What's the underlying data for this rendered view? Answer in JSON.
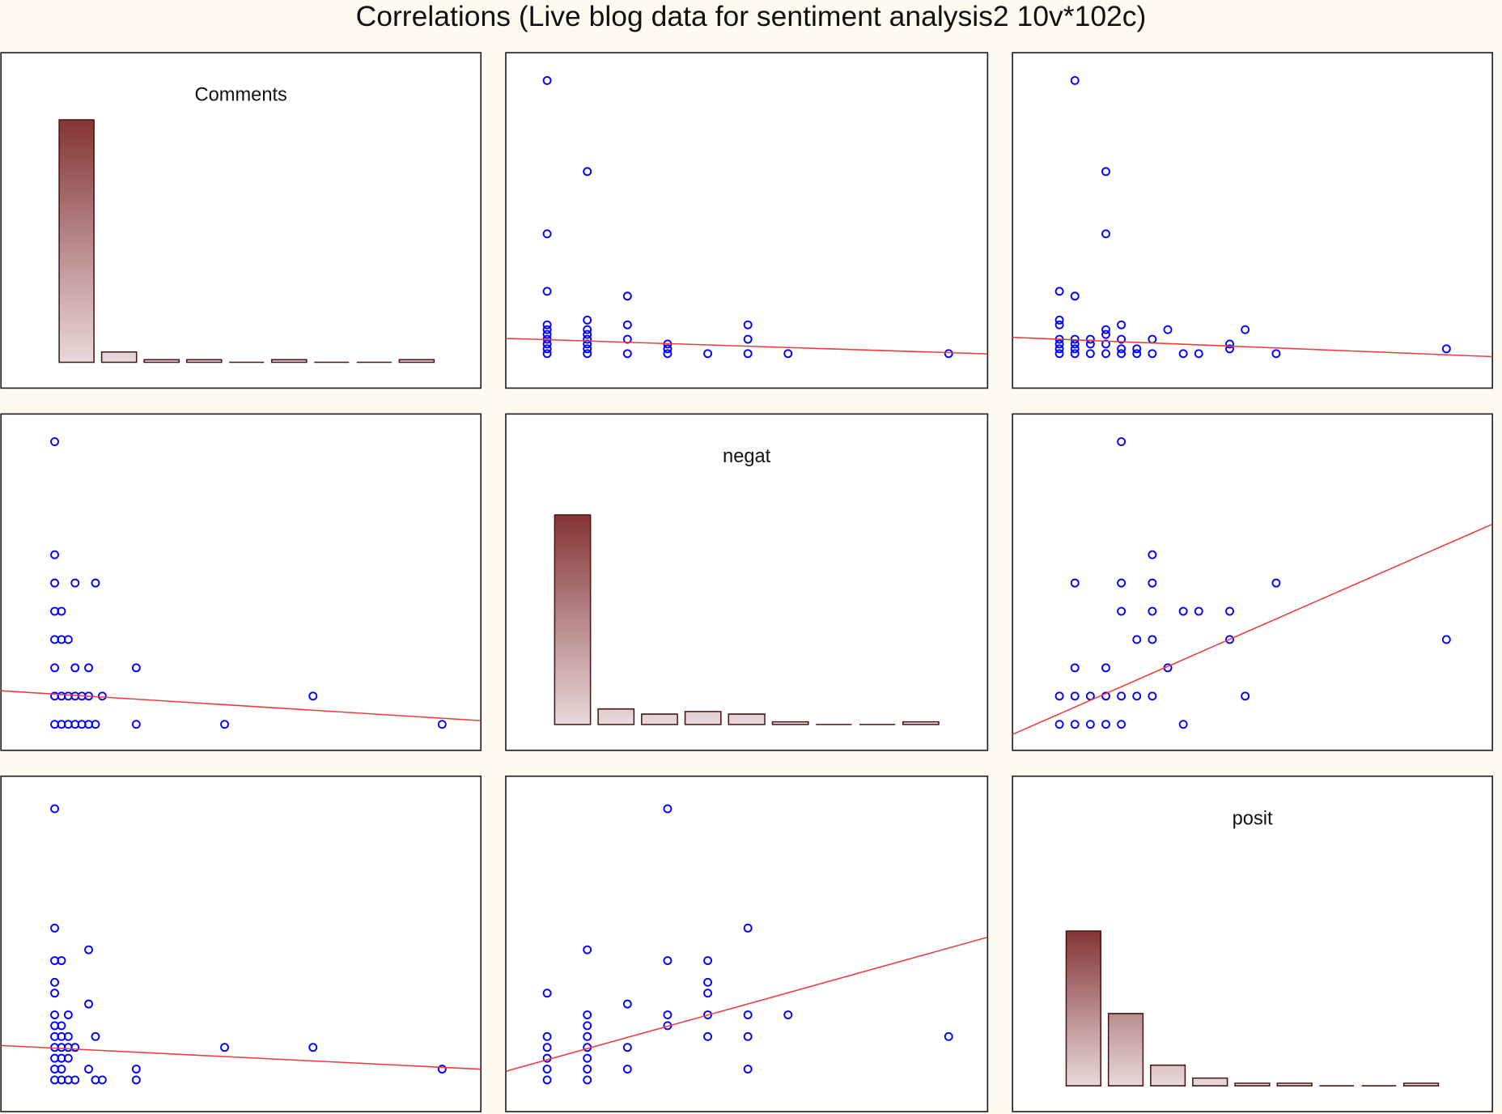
{
  "title": "Correlations (Live blog data for sentiment analysis2 10v*102c)",
  "chart_data": [
    {
      "type": "histogram",
      "title": "Comments",
      "bins": [
        0,
        6.33,
        12.67,
        19,
        25.33,
        31.67,
        38,
        44.33,
        50.67,
        57
      ],
      "values": [
        94,
        4,
        1,
        1,
        0,
        1,
        0,
        0,
        1
      ],
      "colors": [
        "#853535",
        "#e8d9da"
      ],
      "xlim": [
        -8.1,
        63.4
      ],
      "ylim": [
        -10,
        120
      ]
    },
    {
      "type": "scatter",
      "x": [
        0,
        1,
        0,
        0,
        2,
        0,
        0,
        0,
        0,
        0,
        0,
        0,
        1,
        1,
        1,
        1,
        1,
        1,
        1,
        2,
        2,
        2,
        3,
        3,
        3,
        4,
        5,
        5,
        5,
        6,
        10
      ],
      "values": [
        57,
        38,
        25,
        13,
        12,
        6,
        5,
        4,
        3,
        2,
        1,
        0,
        7,
        5,
        4,
        3,
        2,
        1,
        0,
        6,
        3,
        0,
        2,
        1,
        0,
        0,
        6,
        3,
        0,
        0,
        0
      ],
      "color": "#0000ff",
      "fit": {
        "slope": -0.27,
        "intercept": 2.9,
        "color": "#ee3b3b"
      },
      "xlim": [
        -1.03,
        10.97
      ],
      "ylim": [
        -7.2,
        62.8
      ]
    },
    {
      "type": "scatter",
      "x": [
        1,
        3,
        3,
        0,
        1,
        0,
        0,
        0,
        0,
        0,
        0,
        1,
        1,
        1,
        1,
        2,
        2,
        2,
        3,
        3,
        3,
        3,
        4,
        4,
        4,
        4,
        5,
        5,
        6,
        6,
        7,
        8,
        9,
        11,
        11,
        12,
        14,
        25
      ],
      "values": [
        57,
        38,
        25,
        13,
        12,
        7,
        6,
        3,
        2,
        1,
        0,
        3,
        2,
        1,
        0,
        3,
        2,
        0,
        5,
        4,
        2,
        0,
        6,
        3,
        1,
        0,
        1,
        0,
        3,
        0,
        5,
        0,
        0,
        2,
        1,
        5,
        0,
        1
      ],
      "color": "#0000ff",
      "fit": {
        "slope": -0.13,
        "intercept": 3.0,
        "color": "#ee3b3b"
      },
      "xlim": [
        -3.03,
        27.97
      ],
      "ylim": [
        -7.2,
        62.8
      ]
    },
    {
      "type": "scatter",
      "x": [
        0,
        0,
        0,
        3,
        6,
        0,
        1,
        0,
        1,
        2,
        0,
        3,
        5,
        12,
        0,
        1,
        2,
        3,
        4,
        5,
        7,
        38,
        0,
        1,
        2,
        3,
        4,
        5,
        6,
        12,
        25,
        57
      ],
      "values": [
        10,
        6,
        5,
        5,
        5,
        4,
        4,
        3,
        3,
        3,
        2,
        2,
        2,
        2,
        1,
        1,
        1,
        1,
        1,
        1,
        1,
        1,
        0,
        0,
        0,
        0,
        0,
        0,
        0,
        0,
        0,
        0
      ],
      "color": "#0000ff",
      "fit": {
        "slope": -0.015,
        "intercept": 1.07,
        "color": "#ee3b3b"
      },
      "xlim": [
        -7.9,
        62.7
      ],
      "ylim": [
        -0.92,
        10.98
      ]
    },
    {
      "type": "histogram",
      "title": "negat",
      "bins": [
        0,
        1.11,
        2.22,
        3.33,
        4.44,
        5.56,
        6.67,
        7.78,
        8.89,
        10
      ],
      "values": [
        81,
        6,
        4,
        5,
        4,
        1,
        0,
        0,
        1
      ],
      "colors": [
        "#853535",
        "#e8d9da"
      ],
      "xlim": [
        -1.15,
        11.15
      ],
      "ylim": [
        -10,
        120
      ]
    },
    {
      "type": "scatter",
      "x": [
        4,
        6,
        1,
        4,
        6,
        14,
        4,
        6,
        8,
        9,
        11,
        5,
        6,
        11,
        25,
        1,
        3,
        7,
        0,
        1,
        2,
        3,
        4,
        5,
        6,
        12,
        0,
        1,
        2,
        3,
        4,
        8
      ],
      "values": [
        10,
        6,
        5,
        5,
        5,
        5,
        4,
        4,
        4,
        4,
        4,
        3,
        3,
        3,
        3,
        2,
        2,
        2,
        1,
        1,
        1,
        1,
        1,
        1,
        1,
        1,
        0,
        0,
        0,
        0,
        0,
        0
      ],
      "color": "#0000ff",
      "fit": {
        "slope": 0.24,
        "intercept": 0.37,
        "color": "#ee3b3b"
      },
      "xlim": [
        -3.03,
        27.97
      ],
      "ylim": [
        -0.92,
        10.98
      ]
    },
    {
      "type": "scatter",
      "x": [
        0,
        0,
        0,
        1,
        5,
        0,
        0,
        5,
        0,
        2,
        0,
        1,
        0,
        1,
        2,
        6,
        0,
        1,
        2,
        3,
        25,
        38,
        0,
        1,
        2,
        0,
        1,
        5,
        12,
        57,
        0,
        1,
        2,
        3,
        6,
        7,
        12
      ],
      "values": [
        25,
        14,
        11,
        11,
        12,
        9,
        8,
        7,
        6,
        6,
        5,
        5,
        4,
        4,
        4,
        4,
        3,
        3,
        3,
        3,
        3,
        3,
        2,
        2,
        2,
        1,
        1,
        1,
        1,
        1,
        0,
        0,
        0,
        0,
        0,
        0,
        0
      ],
      "color": "#0000ff",
      "fit": {
        "slope": -0.031,
        "intercept": 2.93,
        "color": "#ee3b3b"
      },
      "xlim": [
        -7.9,
        62.7
      ],
      "ylim": [
        -2.92,
        28.0
      ]
    },
    {
      "type": "scatter",
      "x": [
        3,
        5,
        1,
        3,
        4,
        4,
        4,
        0,
        2,
        1,
        3,
        4,
        5,
        6,
        1,
        3,
        0,
        1,
        4,
        5,
        10,
        0,
        1,
        2,
        0,
        1,
        0,
        1,
        2,
        5,
        0,
        1
      ],
      "values": [
        25,
        14,
        12,
        11,
        11,
        9,
        8,
        8,
        7,
        6,
        6,
        6,
        6,
        6,
        5,
        5,
        4,
        4,
        4,
        4,
        4,
        3,
        3,
        3,
        2,
        2,
        1,
        1,
        1,
        1,
        0,
        0
      ],
      "color": "#0000ff",
      "fit": {
        "slope": 1.03,
        "intercept": 1.86,
        "color": "#ee3b3b"
      },
      "xlim": [
        -1.03,
        10.97
      ],
      "ylim": [
        -2.92,
        28.0
      ]
    },
    {
      "type": "histogram",
      "title": "posit",
      "bins": [
        0,
        2.78,
        5.56,
        8.33,
        11.11,
        13.89,
        16.67,
        19.44,
        22.22,
        25
      ],
      "values": [
        60,
        28,
        8,
        3,
        1,
        1,
        0,
        0,
        1
      ],
      "colors": [
        "#853535",
        "#e8d9da"
      ],
      "xlim": [
        -3.28,
        28.3
      ],
      "ylim": [
        -10,
        120
      ]
    }
  ]
}
